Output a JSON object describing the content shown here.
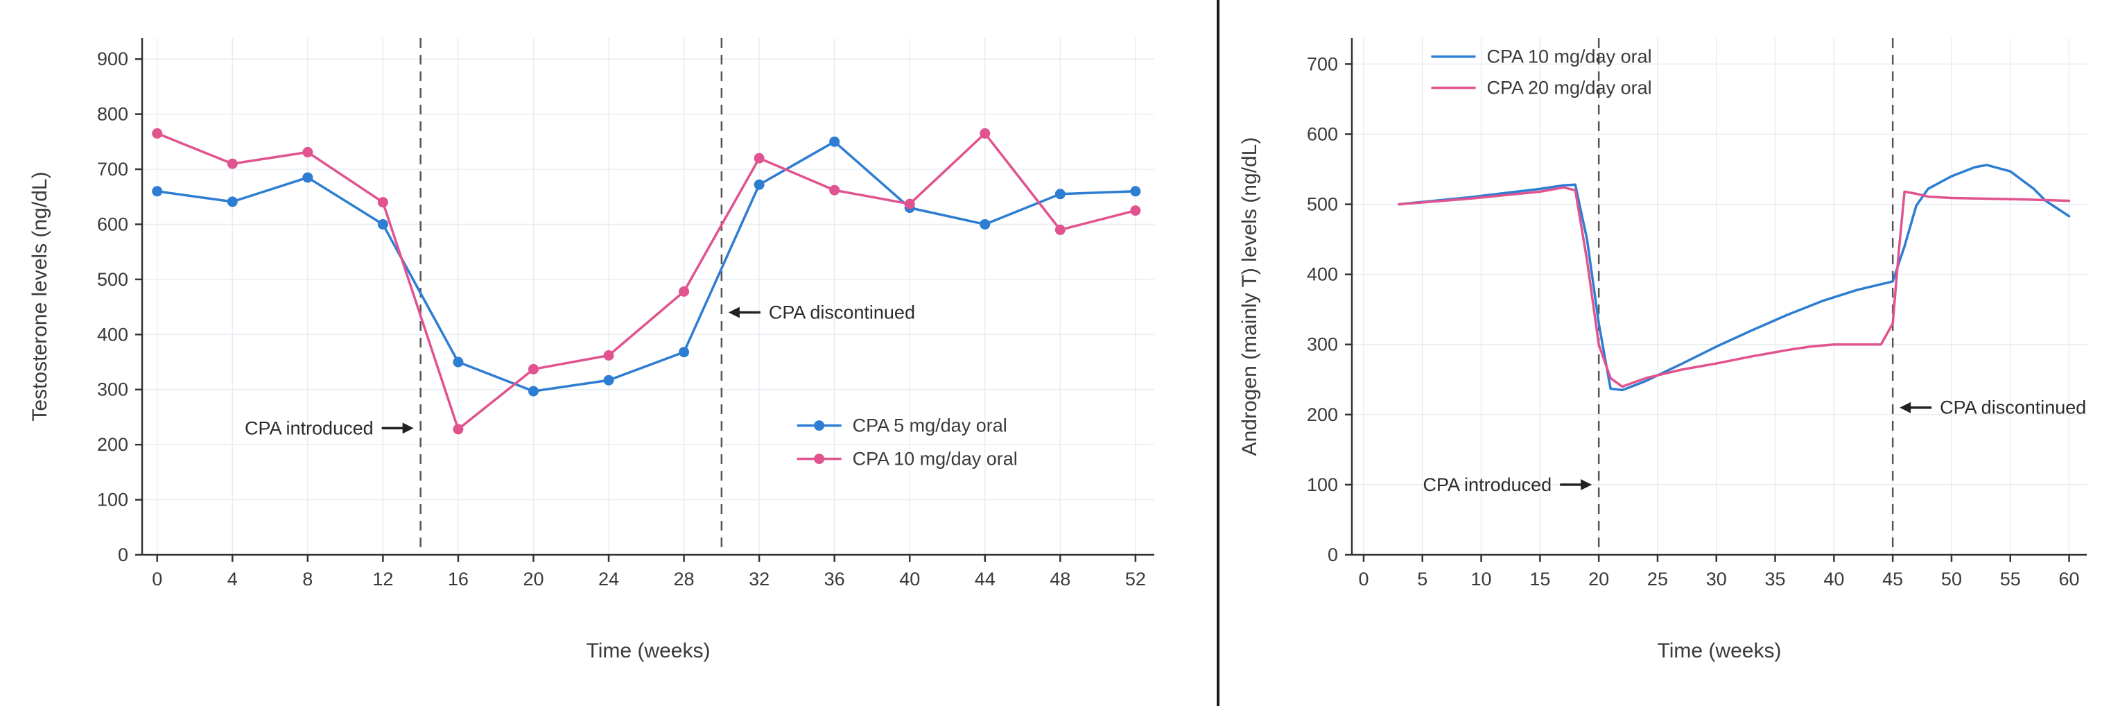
{
  "page": {
    "background": "#ffffff",
    "divider_color": "#1a1a1a",
    "text_color": "#3a3a3a",
    "grid_color": "#e7edf3",
    "spine_color": "#333333",
    "dashed_line_color": "#555555",
    "blue_accent": "#2d7dd2",
    "pink_accent": "#e0538f"
  },
  "chart_data": [
    {
      "name": "testosterone-chart",
      "type": "line",
      "title": "",
      "xlabel": "Time (weeks)",
      "ylabel": "Testosterone levels (ng/dL)",
      "xlim": [
        -0.8,
        53
      ],
      "ylim": [
        0,
        938
      ],
      "xticks": [
        0,
        4,
        8,
        12,
        16,
        20,
        24,
        28,
        32,
        36,
        40,
        44,
        48,
        52
      ],
      "yticks": [
        0,
        100,
        200,
        300,
        400,
        500,
        600,
        700,
        800,
        900
      ],
      "grid": true,
      "markers": true,
      "series": [
        {
          "name": "CPA 5 mg/day oral",
          "color": "#2d7dd2",
          "x": [
            0,
            4,
            8,
            12,
            16,
            20,
            24,
            28,
            32,
            36,
            40,
            44,
            48,
            52
          ],
          "y": [
            660,
            641,
            685,
            600,
            350,
            297,
            317,
            368,
            672,
            750,
            630,
            600,
            655,
            660
          ]
        },
        {
          "name": "CPA 10 mg/day oral",
          "color": "#e0538f",
          "x": [
            0,
            4,
            8,
            12,
            16,
            20,
            24,
            28,
            32,
            36,
            40,
            44,
            48,
            52
          ],
          "y": [
            765,
            710,
            731,
            640,
            228,
            337,
            362,
            478,
            720,
            662,
            637,
            765,
            590,
            625
          ]
        }
      ],
      "vlines": [
        14,
        30
      ],
      "annotations": [
        {
          "text": "CPA introduced",
          "x": 14,
          "y": 230,
          "side": "left"
        },
        {
          "text": "CPA discontinued",
          "x": 30,
          "y": 440,
          "side": "right"
        }
      ],
      "legend": {
        "position": "inside-lower-right",
        "fx": 0.647,
        "fy": 0.731,
        "markers": true,
        "row_gap": 48
      },
      "layout": {
        "margins": {
          "l": 205,
          "r": 90,
          "t": 55,
          "b": 218
        }
      }
    },
    {
      "name": "androgen-chart",
      "type": "line",
      "title": "",
      "xlabel": "Time (weeks)",
      "ylabel": "Androgen (mainly T) levels (ng/dL)",
      "xlim": [
        -1,
        61.5
      ],
      "ylim": [
        0,
        737
      ],
      "xticks": [
        0,
        5,
        10,
        15,
        20,
        25,
        30,
        35,
        40,
        45,
        50,
        55,
        60
      ],
      "yticks": [
        0,
        100,
        200,
        300,
        400,
        500,
        600,
        700
      ],
      "grid": true,
      "markers": false,
      "series": [
        {
          "name": "CPA 10 mg/day oral",
          "color": "#2d7dd2",
          "x": [
            3,
            6,
            9,
            12,
            15,
            17,
            18,
            19,
            20,
            21,
            22,
            24,
            27,
            30,
            33,
            36,
            39,
            42,
            45,
            46,
            47,
            48,
            50,
            52,
            53,
            55,
            57,
            58,
            60
          ],
          "y": [
            500,
            505,
            510,
            516,
            522,
            527,
            528,
            450,
            330,
            237,
            235,
            248,
            272,
            297,
            320,
            342,
            362,
            378,
            390,
            440,
            498,
            522,
            540,
            553,
            556,
            547,
            522,
            505,
            483
          ]
        },
        {
          "name": "CPA 20 mg/day oral",
          "color": "#e0538f",
          "x": [
            3,
            6,
            9,
            12,
            15,
            17,
            18,
            19,
            20,
            21,
            22,
            24,
            27,
            30,
            33,
            36,
            38,
            40,
            43,
            44,
            45,
            45.5,
            46,
            47,
            48,
            50,
            53,
            56,
            58,
            60
          ],
          "y": [
            500,
            504,
            508,
            513,
            518,
            524,
            520,
            420,
            300,
            252,
            240,
            252,
            264,
            273,
            283,
            292,
            297,
            300,
            300,
            300,
            330,
            430,
            518,
            515,
            511,
            509,
            508,
            507,
            506,
            505
          ]
        }
      ],
      "vlines": [
        20,
        45
      ],
      "annotations": [
        {
          "text": "CPA introduced",
          "x": 20,
          "y": 100,
          "side": "left"
        },
        {
          "text": "CPA discontinued",
          "x": 45,
          "y": 210,
          "side": "right"
        }
      ],
      "legend": {
        "position": "inside-upper-left",
        "fx": 0.108,
        "fy": 0.017,
        "markers": false,
        "row_gap": 45
      },
      "layout": {
        "margins": {
          "l": 191,
          "r": 22,
          "t": 55,
          "b": 218
        }
      }
    }
  ]
}
